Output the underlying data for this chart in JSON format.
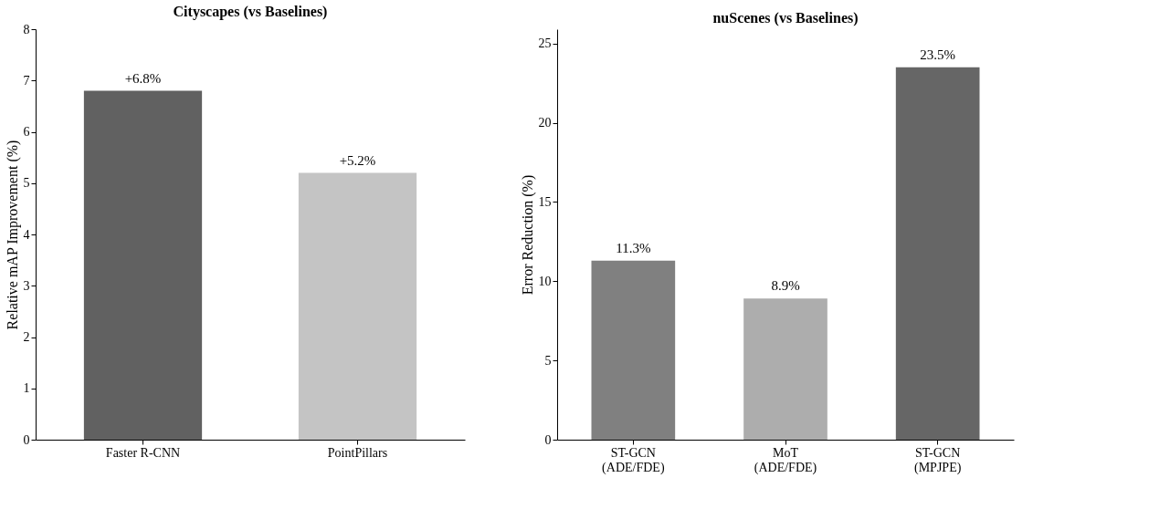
{
  "chart_data": [
    {
      "type": "bar",
      "title": "Cityscapes (vs Baselines)",
      "ylabel": "Relative mAP Improvement (%)",
      "categories": [
        "Faster R-CNN",
        "PointPillars"
      ],
      "values": [
        6.8,
        5.2
      ],
      "colors": [
        "#616161",
        "#c4c4c4"
      ],
      "value_labels": [
        "+6.8%",
        "+5.2%"
      ],
      "ylim": [
        0,
        8
      ],
      "yticks": [
        0,
        1,
        2,
        3,
        4,
        5,
        6,
        7,
        8
      ],
      "grid": false
    },
    {
      "type": "bar",
      "title": "nuScenes (vs Baselines)",
      "ylabel": "Error Reduction (%)",
      "categories": [
        "ST-GCN\n(ADE/FDE)",
        "MoT\n(ADE/FDE)",
        "ST-GCN\n(MPJPE)"
      ],
      "values": [
        11.3,
        8.9,
        23.5
      ],
      "colors": [
        "#808080",
        "#adadad",
        "#666666"
      ],
      "value_labels": [
        "11.3%",
        "8.9%",
        "23.5%"
      ],
      "ylim": [
        0,
        25.9
      ],
      "yticks": [
        0,
        5,
        10,
        15,
        20,
        25
      ],
      "grid": false
    }
  ]
}
